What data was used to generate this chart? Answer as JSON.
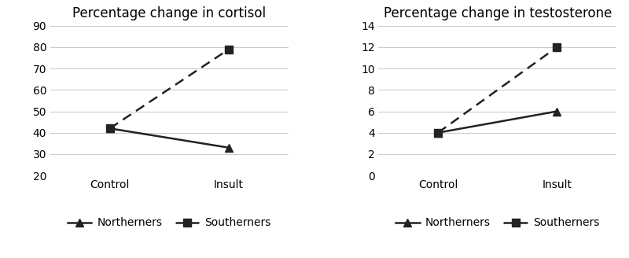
{
  "cortisol": {
    "title": "Percentage change in cortisol",
    "x_labels": [
      "Control",
      "Insult"
    ],
    "northerners": [
      42,
      33
    ],
    "southerners": [
      42,
      79
    ],
    "ylim": [
      20,
      90
    ],
    "yticks": [
      20,
      30,
      40,
      50,
      60,
      70,
      80,
      90
    ]
  },
  "testosterone": {
    "title": "Percentage change in testosterone",
    "x_labels": [
      "Control",
      "Insult"
    ],
    "northerners": [
      4,
      6
    ],
    "southerners": [
      4,
      12
    ],
    "ylim": [
      0,
      14
    ],
    "yticks": [
      0,
      2,
      4,
      6,
      8,
      10,
      12,
      14
    ]
  },
  "legend_labels": [
    "Northerners",
    "Southerners"
  ],
  "line_color": "#222222",
  "bg_color": "#ffffff",
  "grid_color": "#cccccc",
  "title_fontsize": 12,
  "tick_fontsize": 10,
  "legend_fontsize": 10,
  "marker_size": 7,
  "linewidth": 1.8
}
